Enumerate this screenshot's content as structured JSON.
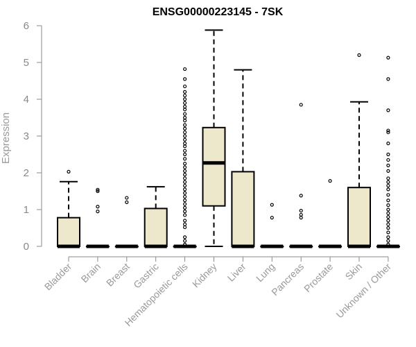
{
  "chart_data": {
    "type": "box",
    "title": "ENSG00000223145 - 7SK",
    "xlabel": "",
    "ylabel": "Expression",
    "ylim": [
      0,
      6
    ],
    "yticks": [
      0,
      1,
      2,
      3,
      4,
      5,
      6
    ],
    "grid": false,
    "colors": {
      "box_fill": "#ede7cc",
      "stroke": "#000000",
      "axis": "#888888"
    },
    "categories": [
      "Bladder",
      "Brain",
      "Breast",
      "Gastric",
      "Hematopoietic cells",
      "Kidney",
      "Liver",
      "Lung",
      "Pancreas",
      "Prostate",
      "Skin",
      "Unknown / Other"
    ],
    "boxes": [
      {
        "category": "Bladder",
        "min": 0,
        "q1": 0,
        "median": 0,
        "q3": 0.78,
        "max": 1.76,
        "outliers": [
          2.03
        ]
      },
      {
        "category": "Brain",
        "min": 0,
        "q1": 0,
        "median": 0,
        "q3": 0,
        "max": 0,
        "outliers": [
          0.95,
          1.08,
          1.5,
          1.54
        ]
      },
      {
        "category": "Breast",
        "min": 0,
        "q1": 0,
        "median": 0,
        "q3": 0,
        "max": 0,
        "outliers": [
          1.2,
          1.32
        ]
      },
      {
        "category": "Gastric",
        "min": 0,
        "q1": 0,
        "median": 0,
        "q3": 1.03,
        "max": 1.62,
        "outliers": []
      },
      {
        "category": "Hematopoietic cells",
        "min": 0,
        "q1": 0,
        "median": 0,
        "q3": 0,
        "max": 0,
        "outliers": [
          0.05,
          0.15,
          0.25,
          0.52,
          0.6,
          0.7,
          0.85,
          0.95,
          1.05,
          1.15,
          1.25,
          1.35,
          1.45,
          1.55,
          1.65,
          1.75,
          1.85,
          1.95,
          2.05,
          2.15,
          2.25,
          2.38,
          2.5,
          2.6,
          2.72,
          2.8,
          2.9,
          3.0,
          3.1,
          3.2,
          3.3,
          3.42,
          3.5,
          3.6,
          3.72,
          3.8,
          3.9,
          4.0,
          4.1,
          4.2,
          4.35,
          4.55,
          4.82
        ]
      },
      {
        "category": "Kidney",
        "min": 0,
        "q1": 1.1,
        "median": 2.27,
        "q3": 3.23,
        "max": 5.88,
        "outliers": []
      },
      {
        "category": "Liver",
        "min": 0,
        "q1": 0,
        "median": 0,
        "q3": 2.03,
        "max": 4.8,
        "outliers": []
      },
      {
        "category": "Lung",
        "min": 0,
        "q1": 0,
        "median": 0,
        "q3": 0,
        "max": 0,
        "outliers": [
          0.78,
          1.13
        ]
      },
      {
        "category": "Pancreas",
        "min": 0,
        "q1": 0,
        "median": 0,
        "q3": 0,
        "max": 0,
        "outliers": [
          0.78,
          0.86,
          0.97,
          1.38,
          3.85
        ]
      },
      {
        "category": "Prostate",
        "min": 0,
        "q1": 0,
        "median": 0,
        "q3": 0,
        "max": 0,
        "outliers": [
          1.78
        ]
      },
      {
        "category": "Skin",
        "min": 0,
        "q1": 0,
        "median": 0,
        "q3": 1.6,
        "max": 3.93,
        "outliers": [
          5.2
        ]
      },
      {
        "category": "Unknown / Other",
        "min": 0,
        "q1": 0,
        "median": 0,
        "q3": 0,
        "max": 0,
        "outliers": [
          0.05,
          0.15,
          0.25,
          0.38,
          0.5,
          0.6,
          0.7,
          0.8,
          0.9,
          1.0,
          1.12,
          1.25,
          1.4,
          1.55,
          1.65,
          1.75,
          1.85,
          2.05,
          2.2,
          2.35,
          2.5,
          2.8,
          3.1,
          3.15,
          3.7,
          4.55,
          5.13
        ]
      }
    ]
  }
}
